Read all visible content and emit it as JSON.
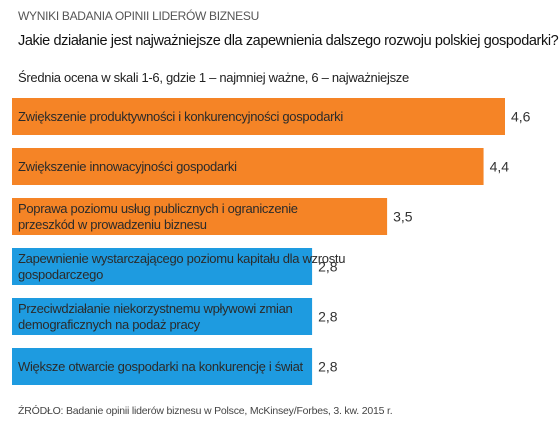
{
  "header": {
    "kicker": "WYNIKI BADANIA OPINII LIDERÓW BIZNESU",
    "title": "Jakie działanie jest najważniejsze dla zapewnienia dalszego rozwoju polskiej gospodarki?",
    "subtitle": "Średnia ocena w skali 1-6, gdzie 1 – najmniej ważne, 6 – najważniejsze"
  },
  "footer": {
    "source": "ŹRÓDŁO: Badanie opinii liderów biznesu w Polsce, McKinsey/Forbes, 3. kw. 2015 r."
  },
  "chart_data": {
    "type": "bar",
    "orientation": "horizontal",
    "categories": [
      [
        "Zwiększenie produktywności i konkurencyjności gospodarki"
      ],
      [
        "Zwiększenie innowacyjności gospodarki"
      ],
      [
        "Poprawa poziomu usług publicznych i ograniczenie",
        "przeszkód w prowadzeniu biznesu"
      ],
      [
        "Zapewnienie wystarczającego poziomu kapitału dla wzrostu",
        "gospodarczego"
      ],
      [
        "Przeciwdziałanie niekorzystnemu wpływowi zmian",
        "demograficznych na podaż pracy"
      ],
      [
        "Większe otwarcie gospodarki na konkurencję i świat"
      ]
    ],
    "values": [
      4.6,
      4.4,
      3.5,
      2.8,
      2.8,
      2.8
    ],
    "value_labels": [
      "4,6",
      "4,4",
      "3,5",
      "2,8",
      "2,8",
      "2,8"
    ],
    "bar_colors": [
      "#F58426",
      "#F58426",
      "#F58426",
      "#1E9BE0",
      "#1E9BE0",
      "#1E9BE0"
    ],
    "xlim": [
      0,
      4.6
    ],
    "grid": false,
    "legend": "none"
  }
}
